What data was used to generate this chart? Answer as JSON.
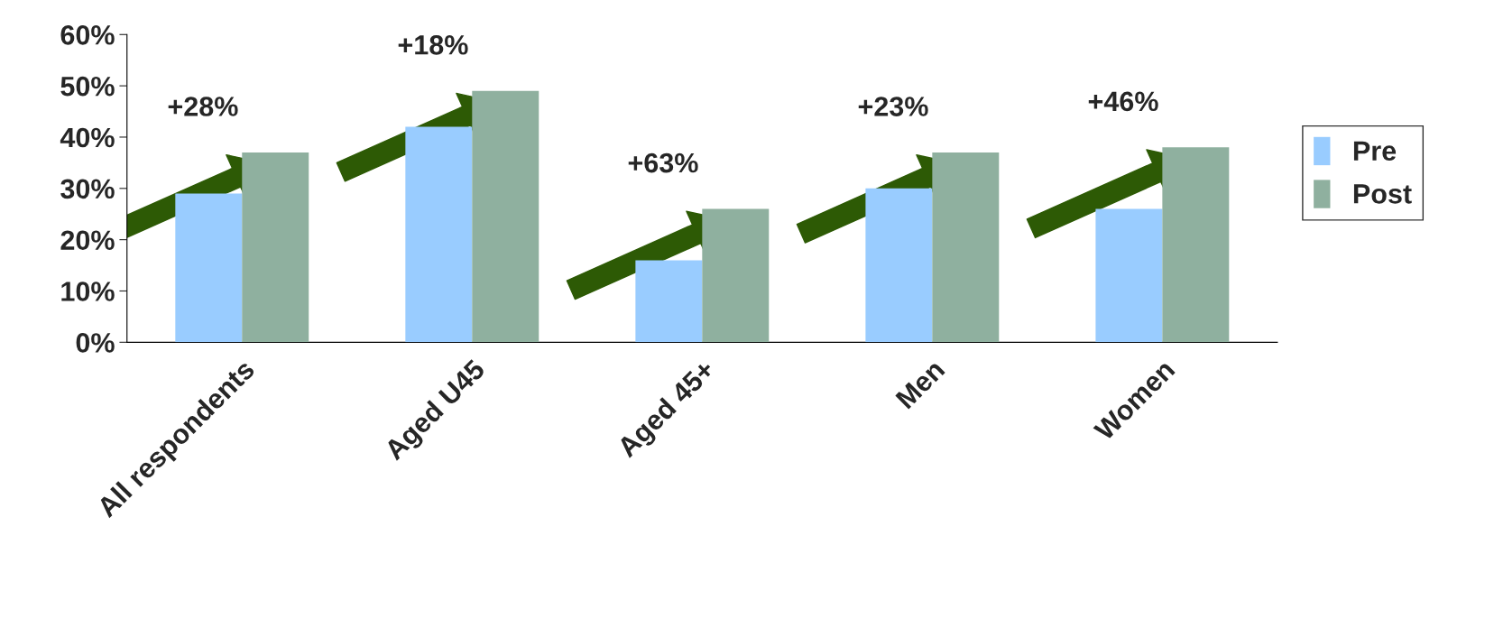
{
  "chart_data": {
    "type": "bar",
    "categories": [
      "All respondents",
      "Aged U45",
      "Aged 45+",
      "Men",
      "Women"
    ],
    "series": [
      {
        "name": "Pre",
        "color": "#99ccff",
        "values": [
          29,
          42,
          16,
          30,
          26
        ]
      },
      {
        "name": "Post",
        "color": "#8fb09f",
        "values": [
          37,
          49,
          26,
          37,
          38
        ]
      }
    ],
    "ylim": [
      0,
      60
    ],
    "yticks": [
      {
        "value": 0,
        "label": "0%"
      },
      {
        "value": 10,
        "label": "10%"
      },
      {
        "value": 20,
        "label": "20%"
      },
      {
        "value": 30,
        "label": "30%"
      },
      {
        "value": 40,
        "label": "40%"
      },
      {
        "value": 50,
        "label": "50%"
      },
      {
        "value": 60,
        "label": "60%"
      }
    ],
    "annotations": [
      "+28%",
      "+18%",
      "+63%",
      "+23%",
      "+46%"
    ],
    "grid": false,
    "legend": "right"
  }
}
